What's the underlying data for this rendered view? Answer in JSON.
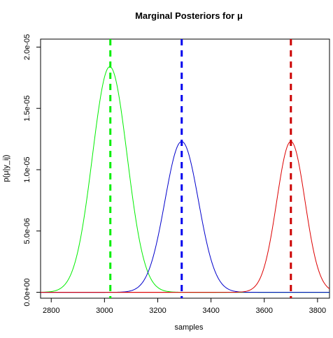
{
  "chart_data": {
    "type": "line",
    "title": "Marginal Posteriors for μ",
    "xlabel": "samples",
    "ylabel": "p(μ|y_ij)",
    "xlim": [
      2760,
      3845
    ],
    "ylim": [
      -4.8e-07,
      2.065e-05
    ],
    "x_ticks": [
      2800,
      3000,
      3200,
      3400,
      3600,
      3800
    ],
    "x_tick_labels": [
      "2800",
      "3000",
      "3200",
      "3400",
      "3600",
      "3800"
    ],
    "y_ticks": [
      0,
      5e-06,
      1e-05,
      1.5e-05,
      2e-05
    ],
    "y_tick_labels": [
      "0.0e+00",
      "5.0e-06",
      "1.0e-05",
      "1.5e-05",
      "2.0e-05"
    ],
    "series": [
      {
        "color": "#00ee00",
        "mean": 3020,
        "sd": 65,
        "peak": 1.84e-05
      },
      {
        "color": "#0000cc",
        "mean": 3290,
        "sd": 63,
        "peak": 1.23e-05
      },
      {
        "color": "#dd0000",
        "mean": 3700,
        "sd": 53,
        "peak": 1.23e-05
      }
    ],
    "vlines": [
      {
        "x": 3022,
        "color": "#00ee00"
      },
      {
        "x": 3290,
        "color": "#0000ee"
      },
      {
        "x": 3700,
        "color": "#cc0000"
      }
    ],
    "baseline_colors": [
      "#dd0000",
      "#5a9a9a"
    ],
    "grid": false,
    "legend": "none"
  }
}
